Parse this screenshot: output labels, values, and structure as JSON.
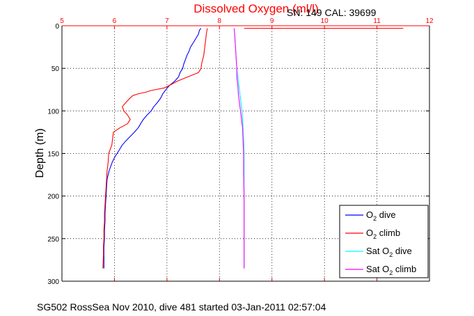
{
  "chart_data": {
    "type": "line",
    "title": "Dissolved Oxygen (ml/l)",
    "annotation": "SN: 149  CAL: 39699",
    "ylabel": "Depth (m)",
    "footer": "SG502 RossSea Nov 2010, dive 481 started 03-Jan-2011 02:57:04",
    "xlim": [
      5,
      12
    ],
    "ylim": [
      0,
      300
    ],
    "y_reversed": true,
    "xticks": [
      "5",
      "6",
      "7",
      "8",
      "9",
      "10",
      "11",
      "12"
    ],
    "yticks": [
      "0",
      "50",
      "100",
      "150",
      "200",
      "250",
      "300"
    ],
    "grid": true,
    "legend_position": "lower-right",
    "legend_labels": [
      {
        "base": "O",
        "sub": "2",
        "rest": " dive"
      },
      {
        "base": "O",
        "sub": "2",
        "rest": " climb"
      },
      {
        "base": "Sat O",
        "sub": "2",
        "rest": " dive"
      },
      {
        "base": "Sat O",
        "sub": "2",
        "rest": " climb"
      }
    ],
    "series": [
      {
        "color": "#0000ff",
        "points": [
          [
            7.65,
            3
          ],
          [
            7.62,
            5
          ],
          [
            7.6,
            10
          ],
          [
            7.55,
            15
          ],
          [
            7.5,
            20
          ],
          [
            7.45,
            25
          ],
          [
            7.42,
            30
          ],
          [
            7.38,
            35
          ],
          [
            7.35,
            40
          ],
          [
            7.32,
            45
          ],
          [
            7.3,
            50
          ],
          [
            7.25,
            55
          ],
          [
            7.22,
            60
          ],
          [
            7.15,
            65
          ],
          [
            7.05,
            70
          ],
          [
            6.98,
            75
          ],
          [
            6.92,
            80
          ],
          [
            6.88,
            85
          ],
          [
            6.82,
            90
          ],
          [
            6.75,
            95
          ],
          [
            6.7,
            100
          ],
          [
            6.62,
            105
          ],
          [
            6.55,
            110
          ],
          [
            6.5,
            115
          ],
          [
            6.45,
            120
          ],
          [
            6.38,
            125
          ],
          [
            6.3,
            130
          ],
          [
            6.22,
            135
          ],
          [
            6.15,
            140
          ],
          [
            6.1,
            145
          ],
          [
            6.05,
            150
          ],
          [
            6.0,
            155
          ],
          [
            5.96,
            160
          ],
          [
            5.93,
            165
          ],
          [
            5.9,
            170
          ],
          [
            5.88,
            175
          ],
          [
            5.86,
            180
          ],
          [
            5.85,
            190
          ],
          [
            5.84,
            200
          ],
          [
            5.83,
            210
          ],
          [
            5.82,
            220
          ],
          [
            5.82,
            230
          ],
          [
            5.81,
            240
          ],
          [
            5.81,
            250
          ],
          [
            5.8,
            260
          ],
          [
            5.8,
            270
          ],
          [
            5.8,
            285
          ]
        ]
      },
      {
        "color": "#ff0000",
        "points": [
          [
            7.77,
            3
          ],
          [
            7.76,
            6
          ],
          [
            7.75,
            10
          ],
          [
            7.74,
            15
          ],
          [
            7.73,
            20
          ],
          [
            7.72,
            25
          ],
          [
            7.71,
            30
          ],
          [
            7.7,
            35
          ],
          [
            7.68,
            40
          ],
          [
            7.66,
            45
          ],
          [
            7.65,
            50
          ],
          [
            7.6,
            55
          ],
          [
            7.4,
            60
          ],
          [
            7.2,
            65
          ],
          [
            7.05,
            70
          ],
          [
            6.95,
            73
          ],
          [
            6.7,
            76
          ],
          [
            6.6,
            78
          ],
          [
            6.45,
            80
          ],
          [
            6.35,
            82
          ],
          [
            6.28,
            86
          ],
          [
            6.22,
            90
          ],
          [
            6.15,
            95
          ],
          [
            6.18,
            100
          ],
          [
            6.25,
            105
          ],
          [
            6.3,
            110
          ],
          [
            6.25,
            115
          ],
          [
            6.1,
            120
          ],
          [
            5.98,
            125
          ],
          [
            5.97,
            130
          ],
          [
            5.96,
            135
          ],
          [
            5.95,
            140
          ],
          [
            5.92,
            145
          ],
          [
            5.89,
            150
          ],
          [
            5.88,
            160
          ],
          [
            5.86,
            170
          ],
          [
            5.85,
            180
          ],
          [
            5.84,
            190
          ],
          [
            5.83,
            200
          ],
          [
            5.82,
            210
          ],
          [
            5.81,
            220
          ],
          [
            5.81,
            230
          ],
          [
            5.8,
            240
          ],
          [
            5.8,
            250
          ],
          [
            5.79,
            260
          ],
          [
            5.79,
            270
          ],
          [
            5.78,
            285
          ]
        ]
      },
      {
        "color": "#00ffff",
        "points": [
          [
            8.28,
            3
          ],
          [
            8.29,
            10
          ],
          [
            8.3,
            20
          ],
          [
            8.31,
            30
          ],
          [
            8.32,
            40
          ],
          [
            8.33,
            50
          ],
          [
            8.35,
            60
          ],
          [
            8.37,
            70
          ],
          [
            8.39,
            80
          ],
          [
            8.41,
            90
          ],
          [
            8.43,
            100
          ],
          [
            8.44,
            110
          ],
          [
            8.45,
            120
          ],
          [
            8.46,
            135
          ],
          [
            8.47,
            150
          ],
          [
            8.47,
            175
          ],
          [
            8.47,
            200
          ],
          [
            8.47,
            225
          ],
          [
            8.47,
            250
          ],
          [
            8.47,
            270
          ],
          [
            8.47,
            285
          ]
        ]
      },
      {
        "color": "#ff00ff",
        "points": [
          [
            8.28,
            3
          ],
          [
            8.29,
            10
          ],
          [
            8.3,
            20
          ],
          [
            8.31,
            30
          ],
          [
            8.32,
            40
          ],
          [
            8.33,
            50
          ],
          [
            8.33,
            60
          ],
          [
            8.35,
            70
          ],
          [
            8.36,
            80
          ],
          [
            8.38,
            90
          ],
          [
            8.4,
            100
          ],
          [
            8.42,
            110
          ],
          [
            8.44,
            120
          ],
          [
            8.45,
            135
          ],
          [
            8.46,
            150
          ],
          [
            8.46,
            175
          ],
          [
            8.47,
            200
          ],
          [
            8.47,
            225
          ],
          [
            8.47,
            250
          ],
          [
            8.47,
            270
          ],
          [
            8.47,
            285
          ]
        ]
      },
      {
        "color": "#ff0000",
        "points": [
          [
            8.47,
            3
          ],
          [
            11.5,
            3
          ]
        ]
      }
    ]
  }
}
